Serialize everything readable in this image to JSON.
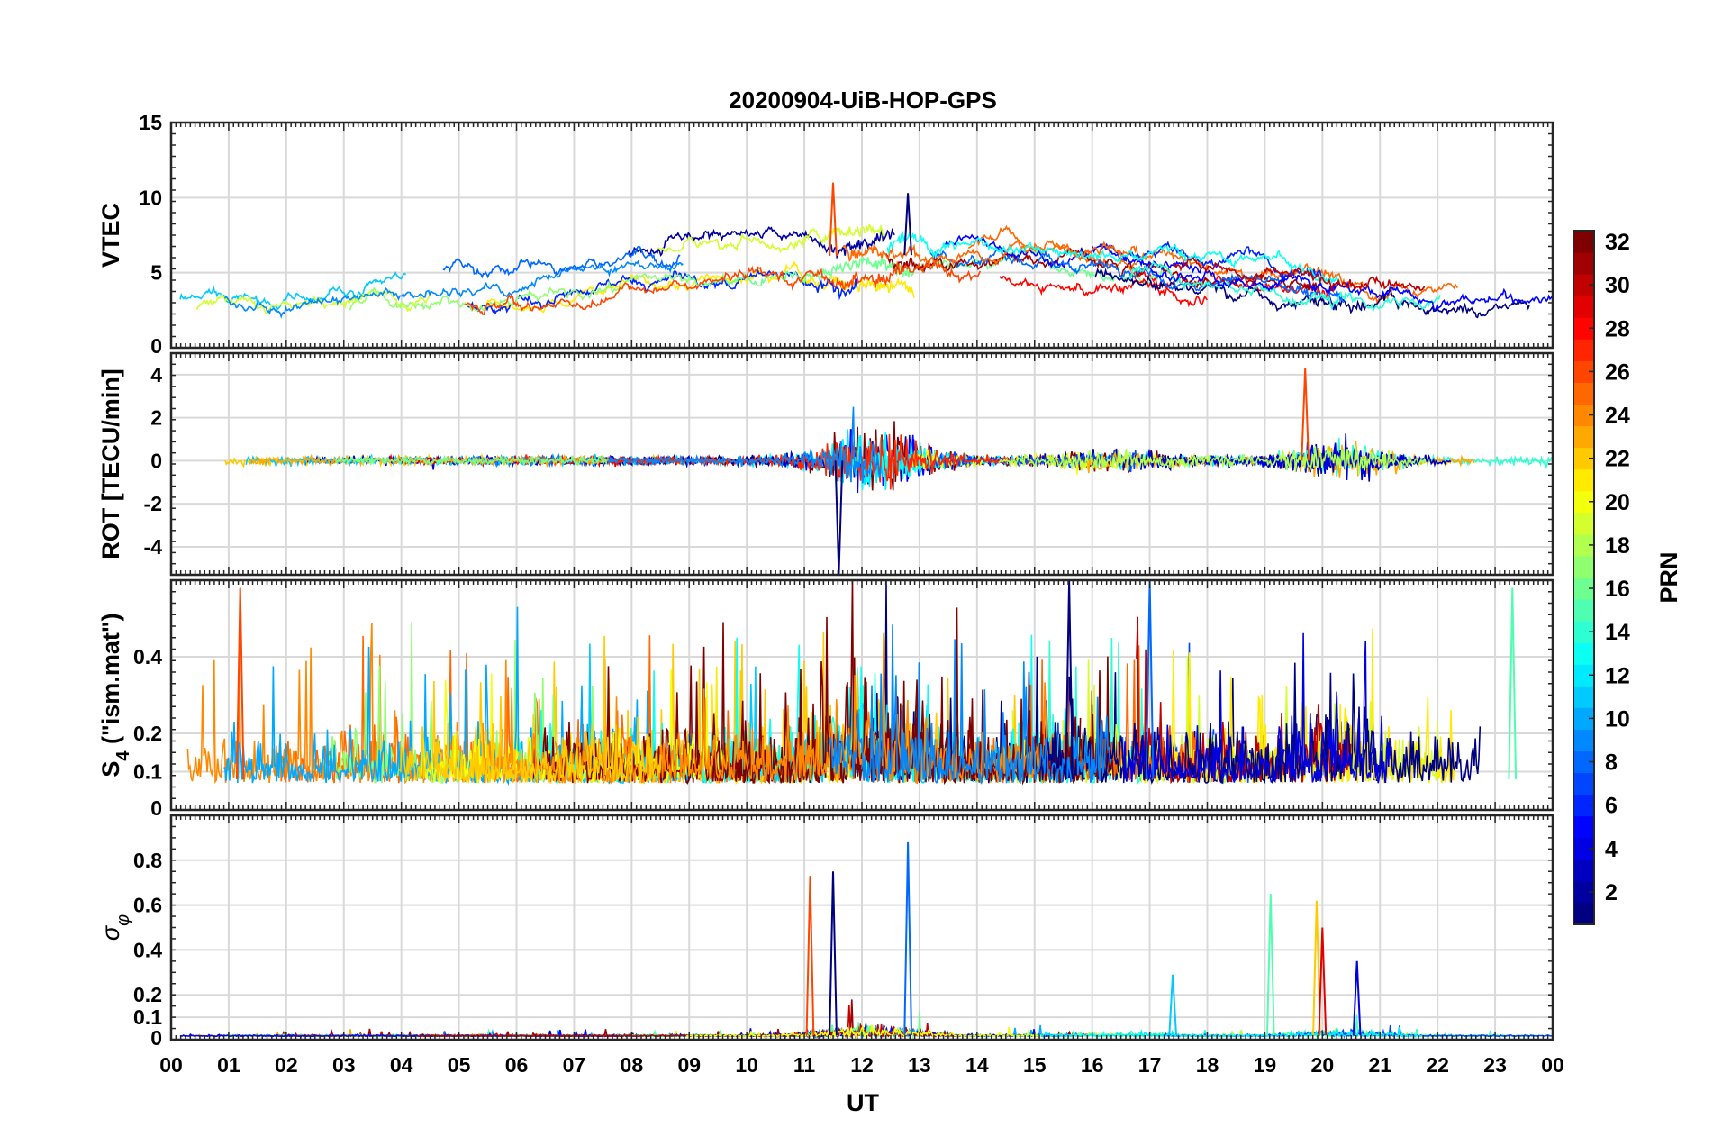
{
  "chart_data": {
    "type": "line",
    "title": "20200904-UiB-HOP-GPS",
    "xlabel": "UT",
    "x_tick_labels": [
      "00",
      "01",
      "02",
      "03",
      "04",
      "05",
      "06",
      "07",
      "08",
      "09",
      "10",
      "11",
      "12",
      "13",
      "14",
      "15",
      "16",
      "17",
      "18",
      "19",
      "20",
      "21",
      "22",
      "23",
      "00"
    ],
    "x_range_hours": [
      0,
      24
    ],
    "grid": true,
    "panels": [
      {
        "id": "vtec",
        "ylabel": "VTEC",
        "ylim": [
          0,
          15
        ],
        "yticks": [
          0,
          5,
          10,
          15
        ],
        "description_values": {
          "typical_range": [
            2,
            9
          ],
          "peak": {
            "x_hour": 11.5,
            "value": 11
          },
          "secondary_peak": {
            "x_hour": 12.8,
            "value": 10.3
          }
        }
      },
      {
        "id": "rot",
        "ylabel": "ROT [TECU/min]",
        "ylim": [
          -5.3,
          5.0
        ],
        "yticks": [
          -4,
          -2,
          0,
          2,
          4
        ],
        "description_values": {
          "baseline": 0,
          "max": {
            "x_hour": 19.7,
            "value": 4.3
          },
          "min": {
            "x_hour": 11.6,
            "value": -5.3
          }
        }
      },
      {
        "id": "s4",
        "ylabel": "S",
        "ylabel_subscript": "4",
        "ylabel_suffix": " (\"ism.mat\")",
        "ylim": [
          0,
          0.6
        ],
        "yticks": [
          0,
          0.1,
          0.2,
          0.4
        ],
        "ytick_labels": [
          "0",
          "0.1",
          "0.2",
          "0.4"
        ],
        "description_values": {
          "baseline_range": [
            0.05,
            0.2
          ],
          "peaks": [
            {
              "x_hour": 1.2,
              "value": 0.58
            },
            {
              "x_hour": 15.6,
              "value": 0.6
            },
            {
              "x_hour": 17.0,
              "value": 0.6
            },
            {
              "x_hour": 23.3,
              "value": 0.58
            }
          ]
        }
      },
      {
        "id": "sigma_phi",
        "ylabel": "σ",
        "ylabel_subscript": "φ",
        "ylim": [
          0,
          1.0
        ],
        "yticks": [
          0,
          0.1,
          0.2,
          0.4,
          0.6,
          0.8
        ],
        "ytick_labels": [
          "0",
          "0.1",
          "0.2",
          "0.4",
          "0.6",
          "0.8"
        ],
        "description_values": {
          "baseline": 0.02,
          "spikes": [
            {
              "x_hour": 11.1,
              "value": 0.73
            },
            {
              "x_hour": 11.5,
              "value": 0.75
            },
            {
              "x_hour": 12.8,
              "value": 0.88
            },
            {
              "x_hour": 19.1,
              "value": 0.65
            },
            {
              "x_hour": 19.9,
              "value": 0.62
            },
            {
              "x_hour": 20.0,
              "value": 0.5
            },
            {
              "x_hour": 20.6,
              "value": 0.35
            },
            {
              "x_hour": 17.4,
              "value": 0.29
            }
          ]
        }
      }
    ],
    "colorbar": {
      "label": "PRN",
      "range": [
        1,
        32
      ],
      "tick_labels": [
        "2",
        "4",
        "6",
        "8",
        "10",
        "12",
        "14",
        "16",
        "18",
        "20",
        "22",
        "24",
        "26",
        "28",
        "30",
        "32"
      ],
      "colormap": "jet",
      "levels": 32
    }
  }
}
